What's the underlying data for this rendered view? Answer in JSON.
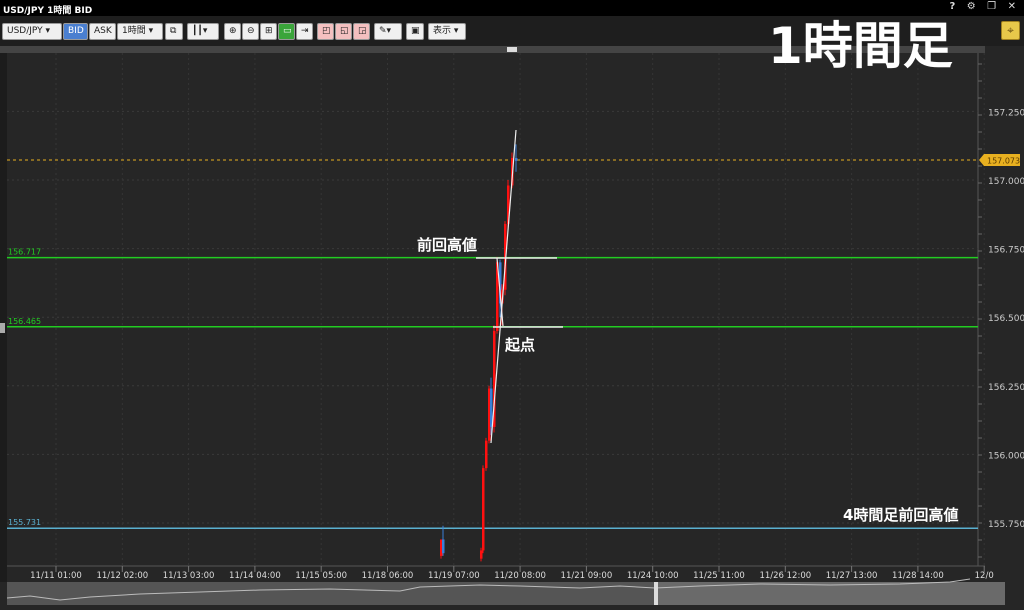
{
  "window": {
    "title": "USD/JPY 1時間 BID",
    "controls": "? ⚙ ❐ ✕"
  },
  "toolbar": {
    "symbol": "USD/JPY",
    "bid": "BID",
    "ask": "ASK",
    "timeframe": "1時間",
    "display": "表示"
  },
  "overlay": {
    "title": "1時間足",
    "prev_high": "前回高値",
    "start_point": "起点",
    "h4_prev_high": "4時間足前回高値"
  },
  "colors": {
    "up": "#ff1010",
    "down": "#3a7fd8",
    "level": "#22cc22",
    "h4level": "#5ab0d0",
    "current": "#e8b020"
  },
  "chart_data": {
    "type": "candlestick",
    "ylim": [
      155.6,
      157.5
    ],
    "y_ticks": [
      "157.250",
      "157.000",
      "156.750",
      "156.500",
      "156.250",
      "156.000",
      "155.750"
    ],
    "x_ticks": [
      "11/11 01:00",
      "11/12 02:00",
      "11/13 03:00",
      "11/14 04:00",
      "11/15 05:00",
      "11/18 06:00",
      "11/19 07:00",
      "11/20 08:00",
      "11/21 09:00",
      "11/24 10:00",
      "11/25 11:00",
      "11/26 12:00",
      "11/27 13:00",
      "11/28 14:00",
      "12/0"
    ],
    "current_price": "157.073",
    "levels": [
      {
        "label": "156.717",
        "value": 156.717
      },
      {
        "label": "156.465",
        "value": 156.465
      },
      {
        "label": "155.731",
        "value": 155.731
      }
    ],
    "candles": [
      {
        "o": 155.63,
        "h": 155.69,
        "l": 155.62,
        "c": 155.69
      },
      {
        "o": 155.69,
        "h": 155.74,
        "l": 155.63,
        "c": 155.64
      },
      {
        "o": 155.62,
        "h": 155.66,
        "l": 155.61,
        "c": 155.65
      },
      {
        "o": 155.65,
        "h": 155.96,
        "l": 155.64,
        "c": 155.95
      },
      {
        "o": 155.95,
        "h": 156.06,
        "l": 155.94,
        "c": 156.05
      },
      {
        "o": 156.05,
        "h": 156.25,
        "l": 156.04,
        "c": 156.24
      },
      {
        "o": 156.24,
        "h": 156.28,
        "l": 156.07,
        "c": 156.1
      },
      {
        "o": 156.1,
        "h": 156.47,
        "l": 156.08,
        "c": 156.45
      },
      {
        "o": 156.45,
        "h": 156.72,
        "l": 156.44,
        "c": 156.7
      },
      {
        "o": 156.7,
        "h": 156.71,
        "l": 156.5,
        "c": 156.55
      },
      {
        "o": 156.55,
        "h": 156.62,
        "l": 156.47,
        "c": 156.6
      },
      {
        "o": 156.6,
        "h": 156.85,
        "l": 156.58,
        "c": 156.84
      },
      {
        "o": 156.84,
        "h": 157.0,
        "l": 156.82,
        "c": 156.98
      },
      {
        "o": 156.98,
        "h": 157.1,
        "l": 156.97,
        "c": 157.08
      },
      {
        "o": 157.08,
        "h": 157.13,
        "l": 157.03,
        "c": 157.07
      }
    ]
  }
}
